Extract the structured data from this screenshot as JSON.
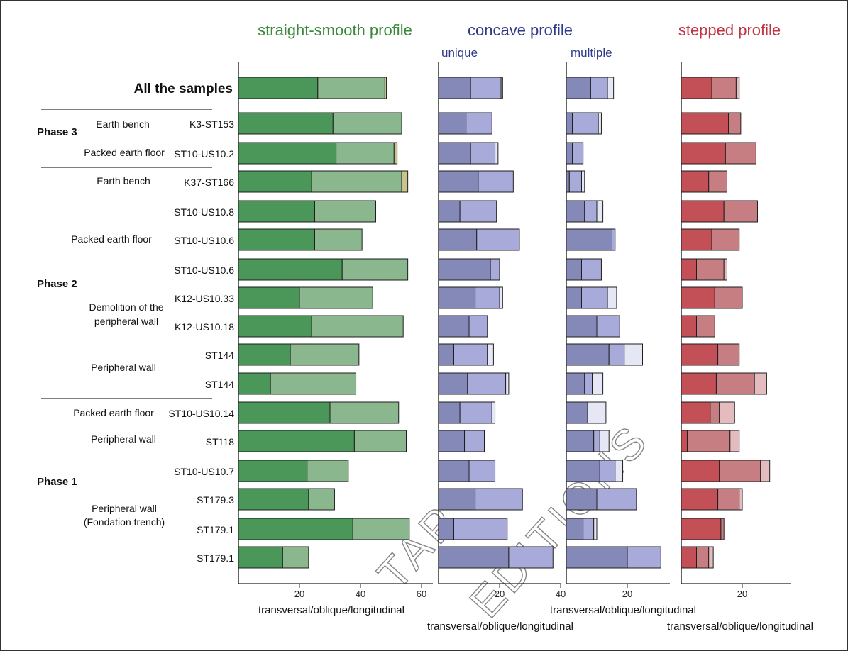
{
  "chart_data": {
    "type": "bar",
    "stacked": true,
    "orientation": "horizontal",
    "rows": [
      "All the samples",
      "K3-ST153",
      "ST10-US10.2",
      "K37-ST166",
      "ST10-US10.8",
      "ST10-US10.6",
      "ST10-US10.6",
      "K12-US10.33",
      "K12-US10.18",
      "ST144",
      "ST144",
      "ST10-US10.14",
      "ST118",
      "ST10-US10.7",
      "ST179.3",
      "ST179.1",
      "ST179.1"
    ],
    "groups": [
      {
        "label": "Earth bench",
        "phase": "Phase 3",
        "rows": [
          1
        ]
      },
      {
        "label": "Packed earth floor",
        "phase": "Phase 3",
        "rows": [
          2
        ]
      },
      {
        "label": "Earth bench",
        "phase": "Phase 2",
        "rows": [
          3
        ]
      },
      {
        "label": "Packed earth floor",
        "phase": "Phase 2",
        "rows": [
          4,
          5
        ]
      },
      {
        "label": "Demolition of the\nperipheral wall",
        "phase": "Phase 2",
        "rows": [
          6,
          7,
          8
        ]
      },
      {
        "label": "Peripheral wall",
        "phase": "Phase 2",
        "rows": [
          9,
          10
        ]
      },
      {
        "label": "Packed earth floor",
        "phase": "Phase 1",
        "rows": [
          11
        ]
      },
      {
        "label": "Peripheral wall",
        "phase": "Phase 1",
        "rows": [
          12
        ]
      },
      {
        "label": "Peripheral wall\n(Fondation  trench)",
        "phase": "Phase 1",
        "rows": [
          13,
          14,
          15,
          16
        ]
      }
    ],
    "phases": [
      "Phase 3",
      "Phase 2",
      "Phase 1"
    ],
    "segments": [
      "transversal",
      "oblique",
      "longitudinal"
    ],
    "panels": [
      {
        "title": "straight-smooth profile",
        "subtitle": "",
        "xlabel": "transversal/oblique/longitudinal",
        "xticks": [
          20,
          40,
          60
        ],
        "xlim": [
          0,
          66
        ],
        "colors": [
          "#4b9759",
          "#8ab78e",
          "#c9c48c"
        ],
        "values": [
          [
            26,
            22,
            0.5
          ],
          [
            31,
            22.5,
            0
          ],
          [
            32,
            19,
            1
          ],
          [
            24,
            29.5,
            2
          ],
          [
            25,
            20,
            0
          ],
          [
            25,
            15.5,
            0
          ],
          [
            34,
            21.5,
            0
          ],
          [
            20,
            24,
            0
          ],
          [
            24,
            30,
            0
          ],
          [
            17,
            22.5,
            0
          ],
          [
            10.5,
            28,
            0
          ],
          [
            30,
            22.5,
            0
          ],
          [
            38,
            17,
            0
          ],
          [
            22.5,
            13.5,
            0
          ],
          [
            23,
            8.5,
            0
          ],
          [
            37.5,
            18.5,
            0
          ],
          [
            14.5,
            8.5,
            0
          ]
        ]
      },
      {
        "title": "concave profile",
        "subtitle": "unique",
        "xlabel": "transversal/oblique/longitudinal",
        "xticks": [
          20,
          40
        ],
        "xlim": [
          0,
          40
        ],
        "colors": [
          "#8589b8",
          "#a8abda",
          "#e6e7f4"
        ],
        "values": [
          [
            10.5,
            10,
            0.5
          ],
          [
            9,
            8.5,
            0
          ],
          [
            10.5,
            8,
            1
          ],
          [
            13,
            11.5,
            0
          ],
          [
            7,
            12,
            0
          ],
          [
            12.5,
            14,
            0
          ],
          [
            17,
            3,
            0
          ],
          [
            12,
            8,
            1
          ],
          [
            10,
            6,
            0
          ],
          [
            5,
            11,
            2
          ],
          [
            9.5,
            12.5,
            1
          ],
          [
            7,
            10.5,
            1
          ],
          [
            8.5,
            6.5,
            0
          ],
          [
            10,
            8.5,
            0
          ],
          [
            12,
            15.5,
            0
          ],
          [
            5,
            17.5,
            0
          ],
          [
            23,
            14.5,
            0
          ]
        ]
      },
      {
        "title": "",
        "subtitle": "multiple",
        "xlabel": "transversal/oblique/longitudinal",
        "xticks": [
          20
        ],
        "xlim": [
          0,
          40
        ],
        "colors": [
          "#8589b8",
          "#a8abda",
          "#e6e7f4"
        ],
        "values": [
          [
            8,
            5.5,
            2
          ],
          [
            2,
            8.5,
            1
          ],
          [
            2,
            3.5,
            0
          ],
          [
            1,
            4,
            1
          ],
          [
            6,
            4,
            2
          ],
          [
            15,
            1,
            0
          ],
          [
            5,
            6.5,
            0
          ],
          [
            5,
            8.5,
            3
          ],
          [
            10,
            7.5,
            0
          ],
          [
            14,
            5,
            6
          ],
          [
            6,
            2.5,
            3.5
          ],
          [
            7,
            0,
            6
          ],
          [
            9,
            2,
            3
          ],
          [
            11,
            5,
            2.5
          ],
          [
            10,
            13,
            0
          ],
          [
            5.5,
            3.5,
            1
          ],
          [
            20,
            11,
            0
          ]
        ]
      },
      {
        "title": "stepped profile",
        "subtitle": "",
        "xlabel": "transversal/oblique/longitudinal",
        "xticks": [
          20
        ],
        "xlim": [
          0,
          36
        ],
        "colors": [
          "#c34f57",
          "#c77e82",
          "#e4bcbf"
        ],
        "values": [
          [
            10,
            8,
            1
          ],
          [
            15.5,
            4,
            0
          ],
          [
            14.5,
            10,
            0
          ],
          [
            9,
            6,
            0
          ],
          [
            14,
            11,
            0
          ],
          [
            10,
            9,
            0
          ],
          [
            5,
            9,
            1
          ],
          [
            11,
            9,
            0
          ],
          [
            5,
            6,
            0
          ],
          [
            12,
            7,
            0
          ],
          [
            11.5,
            12.5,
            4
          ],
          [
            9.5,
            3,
            5
          ],
          [
            2,
            14,
            3
          ],
          [
            12.5,
            13.5,
            3
          ],
          [
            12,
            7,
            1
          ],
          [
            13,
            1,
            0
          ],
          [
            5,
            4,
            1.5
          ]
        ]
      }
    ]
  },
  "labels": {
    "main_row": "All the samples",
    "phase3": "Phase 3",
    "phase2": "Phase 2",
    "phase1": "Phase 1"
  },
  "watermark": "TAP EDITIONS"
}
